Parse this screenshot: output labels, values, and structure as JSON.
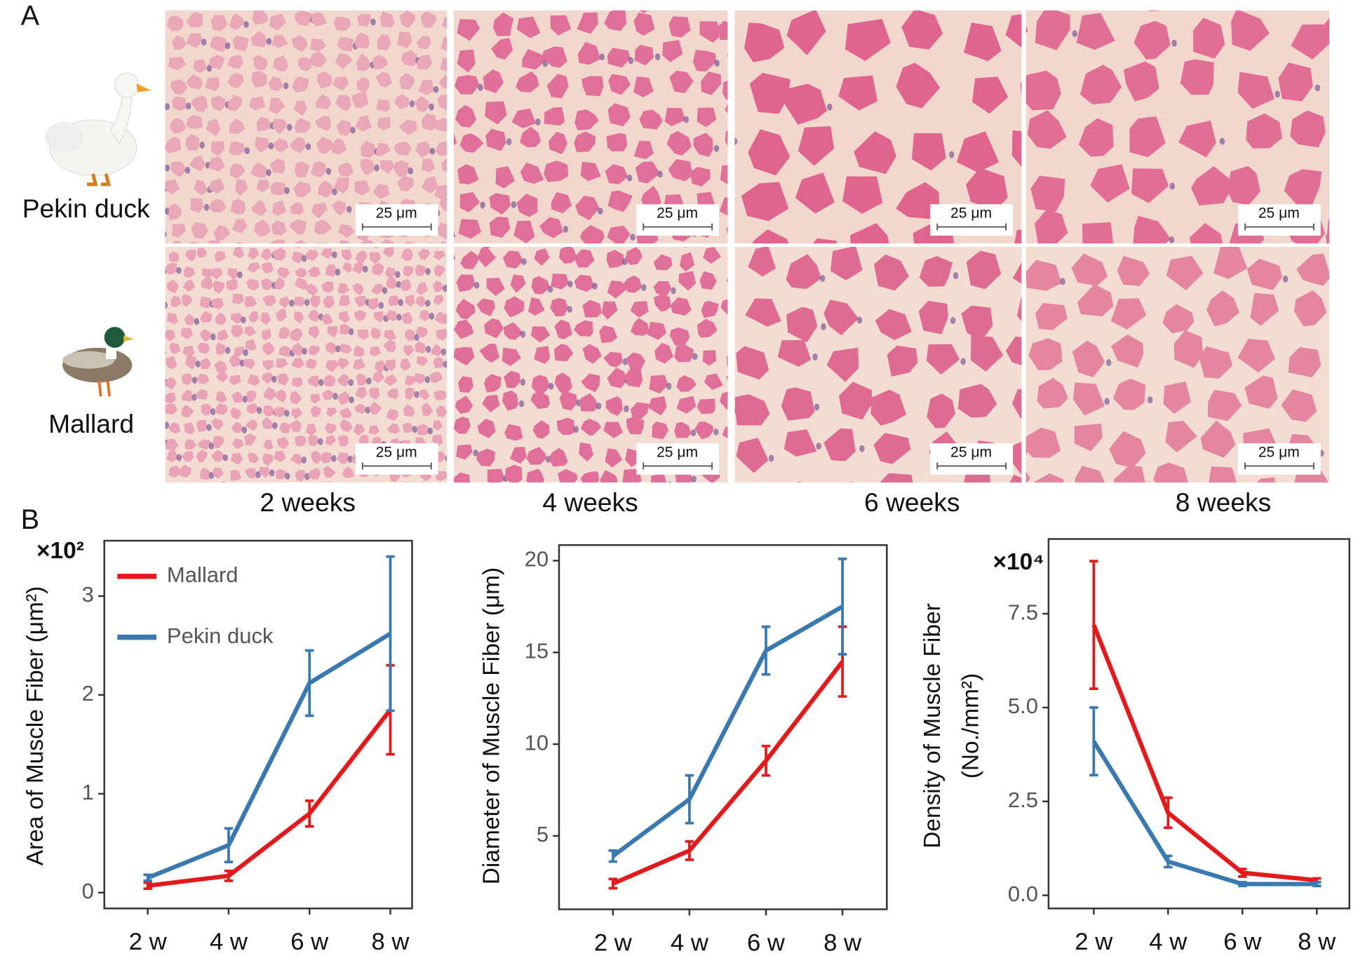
{
  "panel_labels": [
    "A",
    "B"
  ],
  "row_labels": [
    "Pekin duck",
    "Mallard"
  ],
  "column_labels": [
    "2 weeks",
    "4 weeks",
    "6 weeks",
    "8 weeks"
  ],
  "scale_bars": [
    "25 μm",
    "25 μm",
    "25 μm",
    "25 μm",
    "25 μm",
    "25 μm",
    "25 μm",
    "25 μm"
  ],
  "chart_data": [
    {
      "type": "line",
      "y_label": "Area of Muscle Fiber (μm²)",
      "multiplier": "×10²",
      "categories": [
        "2 w",
        "4 w",
        "6 w",
        "8 w"
      ],
      "series": [
        {
          "name": "Mallard",
          "color": "#e31a1c",
          "values": [
            0.07,
            0.17,
            0.8,
            1.85
          ],
          "errors": [
            0.03,
            0.05,
            0.13,
            0.45
          ]
        },
        {
          "name": "Pekin duck",
          "color": "#3a78b0",
          "values": [
            0.15,
            0.48,
            2.12,
            2.62
          ],
          "errors": [
            0.03,
            0.17,
            0.33,
            0.78
          ]
        }
      ],
      "ylim": [
        -0.16,
        3.56
      ],
      "yticks": [
        0,
        1,
        2,
        3
      ],
      "legend": "upper left"
    },
    {
      "type": "line",
      "y_label": "Diameter of Muscle Fiber (μm)",
      "categories": [
        "2 w",
        "4 w",
        "6 w",
        "8 w"
      ],
      "series": [
        {
          "color": "#e31a1c",
          "values": [
            2.4,
            4.2,
            9.1,
            14.5
          ],
          "errors": [
            0.25,
            0.5,
            0.8,
            1.9
          ]
        },
        {
          "color": "#3a78b0",
          "values": [
            3.9,
            7.0,
            15.1,
            17.5
          ],
          "errors": [
            0.3,
            1.3,
            1.3,
            2.6
          ]
        }
      ],
      "ylim": [
        1.0,
        20.85
      ],
      "yticks": [
        5,
        10,
        15,
        20
      ]
    },
    {
      "type": "line",
      "y_label": [
        "Density of Muscle Fiber",
        "(No./mm²)"
      ],
      "multiplier": "×10⁴",
      "categories": [
        "2 w",
        "4 w",
        "6 w",
        "8 w"
      ],
      "series": [
        {
          "color": "#e31a1c",
          "values": [
            7.2,
            2.2,
            0.6,
            0.4
          ],
          "errors": [
            1.7,
            0.4,
            0.1,
            0.05
          ]
        },
        {
          "color": "#3a78b0",
          "values": [
            4.1,
            0.9,
            0.3,
            0.3
          ],
          "errors": [
            0.9,
            0.15,
            0.05,
            0.05
          ]
        }
      ],
      "ylim": [
        -0.35,
        9.49
      ],
      "yticks": [
        {
          "value": 0,
          "label": "0.0"
        },
        2.5,
        {
          "value": 5,
          "label": "5.0"
        },
        7.5
      ]
    }
  ]
}
